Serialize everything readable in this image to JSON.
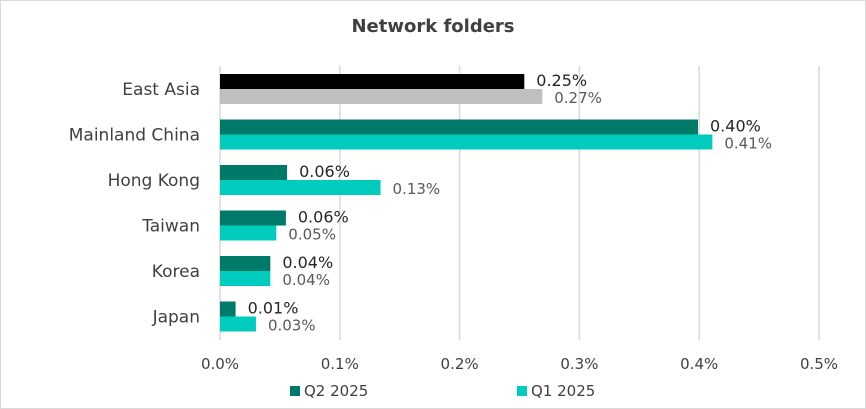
{
  "chart_data": {
    "type": "bar",
    "orientation": "horizontal",
    "title": "Network folders",
    "categories": [
      "East Asia",
      "Mainland China",
      "Hong Kong",
      "Taiwan",
      "Korea",
      "Japan"
    ],
    "series": [
      {
        "name": "Q2 2025",
        "values": [
          0.254,
          0.399,
          0.056,
          0.055,
          0.042,
          0.013
        ],
        "labels": [
          "0.25%",
          "0.40%",
          "0.06%",
          "0.06%",
          "0.04%",
          "0.01%"
        ],
        "highlight_color": "#000000",
        "color": "#007a68"
      },
      {
        "name": "Q1 2025",
        "values": [
          0.269,
          0.411,
          0.134,
          0.047,
          0.042,
          0.03
        ],
        "labels": [
          "0.27%",
          "0.41%",
          "0.13%",
          "0.05%",
          "0.04%",
          "0.03%"
        ],
        "highlight_color": "#bfbfbf",
        "color": "#00ccbe"
      }
    ],
    "xlim": [
      0,
      0.5
    ],
    "xticks": [
      "0.0%",
      "0.1%",
      "0.2%",
      "0.3%",
      "0.4%",
      "0.5%"
    ],
    "grid": "vertical",
    "legend_position": "bottom",
    "gridline_color": "#d9d9d9"
  }
}
